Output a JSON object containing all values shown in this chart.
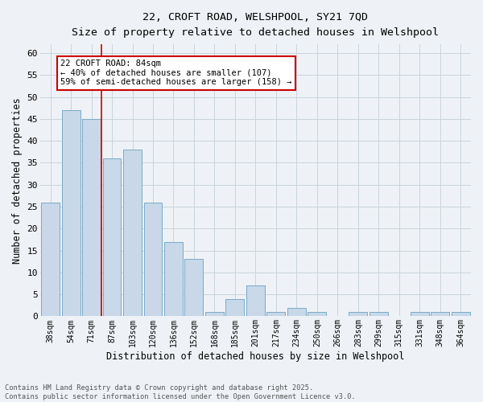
{
  "title_line1": "22, CROFT ROAD, WELSHPOOL, SY21 7QD",
  "title_line2": "Size of property relative to detached houses in Welshpool",
  "xlabel": "Distribution of detached houses by size in Welshpool",
  "ylabel": "Number of detached properties",
  "categories": [
    "38sqm",
    "54sqm",
    "71sqm",
    "87sqm",
    "103sqm",
    "120sqm",
    "136sqm",
    "152sqm",
    "168sqm",
    "185sqm",
    "201sqm",
    "217sqm",
    "234sqm",
    "250sqm",
    "266sqm",
    "283sqm",
    "299sqm",
    "315sqm",
    "331sqm",
    "348sqm",
    "364sqm"
  ],
  "values": [
    26,
    47,
    45,
    36,
    38,
    26,
    17,
    13,
    1,
    4,
    7,
    1,
    2,
    1,
    0,
    1,
    1,
    0,
    1,
    1,
    1
  ],
  "bar_color": "#c8d8e8",
  "bar_edge_color": "#7aaac8",
  "vline_x_index": 3,
  "vline_color": "#cc0000",
  "annotation_text": "22 CROFT ROAD: 84sqm\n← 40% of detached houses are smaller (107)\n59% of semi-detached houses are larger (158) →",
  "annotation_box_color": "#ffffff",
  "annotation_box_edge_color": "#cc0000",
  "ylim": [
    0,
    62
  ],
  "yticks": [
    0,
    5,
    10,
    15,
    20,
    25,
    30,
    35,
    40,
    45,
    50,
    55,
    60
  ],
  "grid_color": "#c8d4dc",
  "background_color": "#eef2f6",
  "footer_text": "Contains HM Land Registry data © Crown copyright and database right 2025.\nContains public sector information licensed under the Open Government Licence v3.0."
}
